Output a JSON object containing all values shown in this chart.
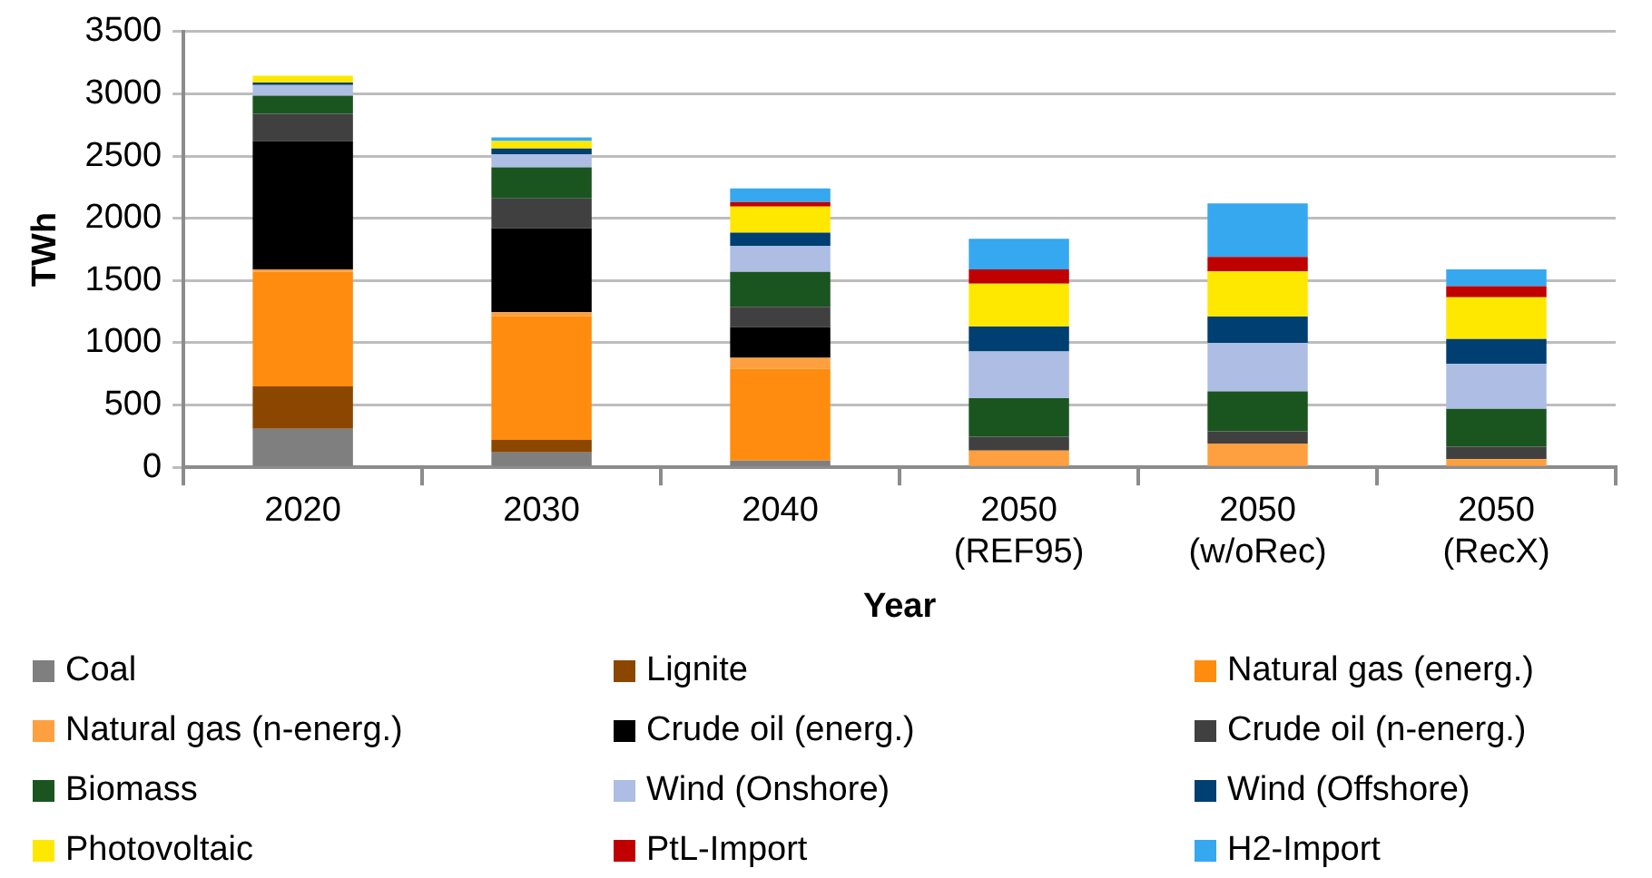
{
  "chart_data": {
    "type": "bar",
    "stacked": true,
    "xlabel": "Year",
    "ylabel": "TWh",
    "categories": [
      "2020",
      "2030",
      "2040",
      "2050 (REF95)",
      "2050 (w/oRec)",
      "2050 (RecX)"
    ],
    "ylim": [
      0,
      3500
    ],
    "yticks": [
      0,
      500,
      1000,
      1500,
      2000,
      2500,
      3000,
      3500
    ],
    "grid": "y",
    "legend": "bottom",
    "series": [
      {
        "name": "Coal",
        "color": "#7f7f7f",
        "values": [
          310,
          120,
          55,
          0,
          0,
          0
        ]
      },
      {
        "name": "Lignite",
        "color": "#8b4700",
        "values": [
          340,
          100,
          0,
          0,
          0,
          0
        ]
      },
      {
        "name": "Natural gas (energ.)",
        "color": "#ff8c0f",
        "values": [
          920,
          995,
          735,
          0,
          0,
          0
        ]
      },
      {
        "name": "Natural gas (n-energ.)",
        "color": "#ffa040",
        "values": [
          20,
          30,
          90,
          135,
          190,
          65
        ]
      },
      {
        "name": "Crude oil (energ.)",
        "color": "#000000",
        "values": [
          1030,
          675,
          245,
          0,
          0,
          0
        ]
      },
      {
        "name": "Crude oil (n-energ.)",
        "color": "#404040",
        "values": [
          220,
          240,
          165,
          110,
          100,
          100
        ]
      },
      {
        "name": "Biomass",
        "color": "#1a5520",
        "values": [
          145,
          250,
          280,
          310,
          320,
          305
        ]
      },
      {
        "name": "Wind (Onshore)",
        "color": "#adbde3",
        "values": [
          85,
          105,
          210,
          375,
          390,
          360
        ]
      },
      {
        "name": "Wind (Offshore)",
        "color": "#003f72",
        "values": [
          20,
          45,
          105,
          200,
          210,
          200
        ]
      },
      {
        "name": "Photovoltaic",
        "color": "#ffe800",
        "values": [
          55,
          60,
          210,
          345,
          365,
          335
        ]
      },
      {
        "name": "PtL-Import",
        "color": "#c00000",
        "values": [
          0,
          0,
          35,
          115,
          115,
          90
        ]
      },
      {
        "name": "H2-Import",
        "color": "#35a8f0",
        "values": [
          0,
          30,
          110,
          245,
          430,
          135
        ]
      }
    ]
  }
}
